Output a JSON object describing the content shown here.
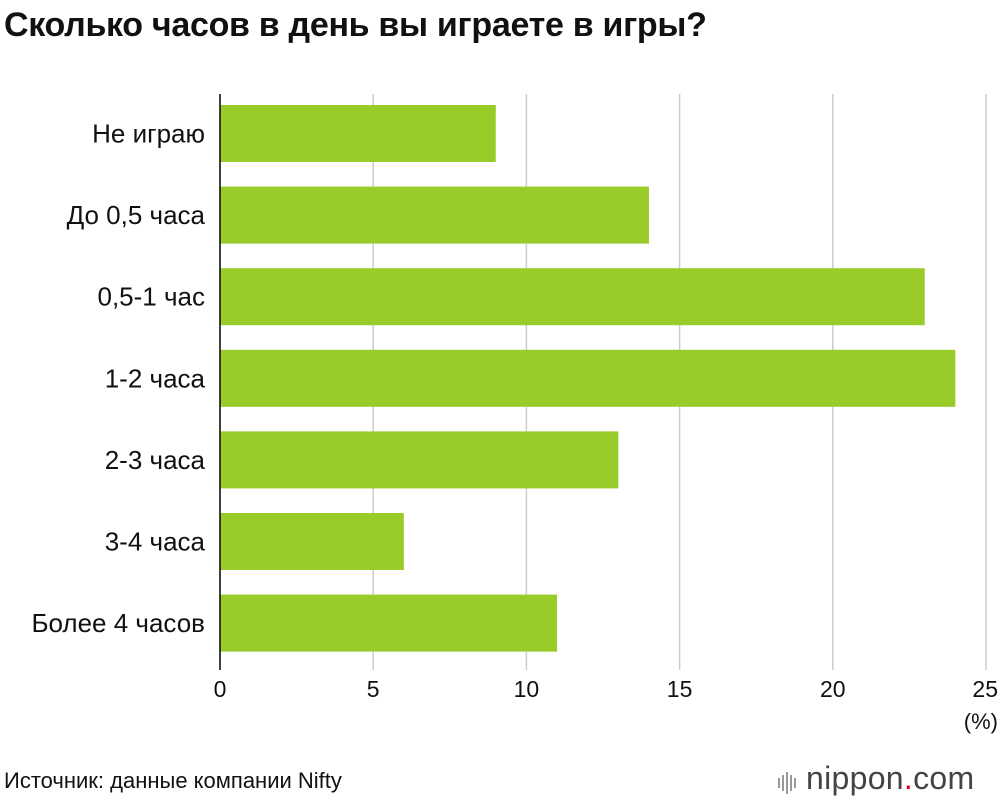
{
  "title": "Сколько часов в день вы играете в игры?",
  "source": "Источник: данные компании Nifty",
  "brand": {
    "name": "nippon",
    "dot": ".",
    "tld": "com"
  },
  "chart_data": {
    "type": "bar",
    "orientation": "horizontal",
    "title": "Сколько часов в день вы играете в игры?",
    "categories": [
      "Не играю",
      "До 0,5 часа",
      "0,5-1 час",
      "1-2 часа",
      "2-3 часа",
      "3-4 часа",
      "Более 4 часов"
    ],
    "values": [
      9,
      14,
      23,
      24,
      13,
      6,
      11
    ],
    "xlim": [
      0,
      25
    ],
    "xticks": [
      0,
      5,
      10,
      15,
      20,
      25
    ],
    "unit": "(%)",
    "grid": true,
    "bar_color": "#99cc29",
    "grid_color": "#cccccc"
  }
}
